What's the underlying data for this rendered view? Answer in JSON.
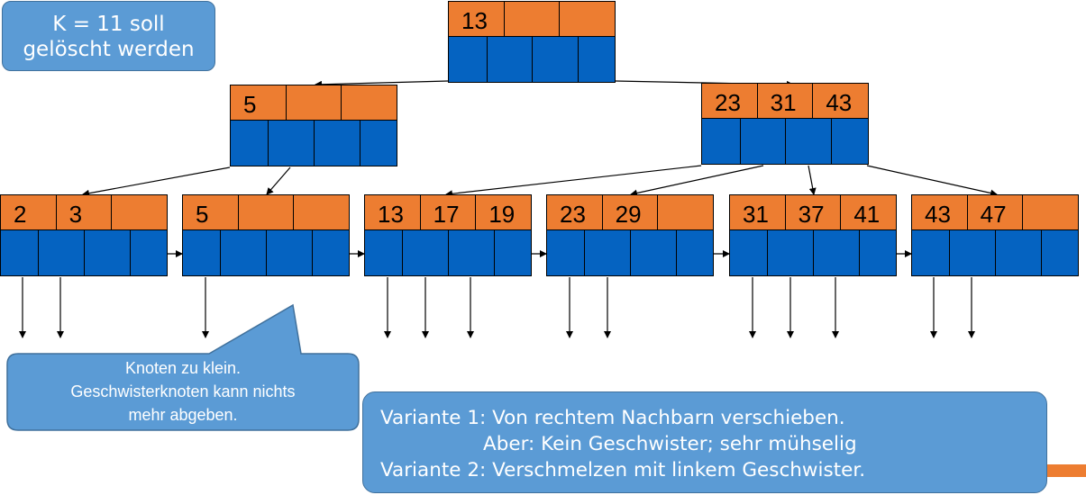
{
  "title_box": {
    "line1": "K = 11 soll",
    "line2": "gelöscht werden"
  },
  "tree": {
    "root": {
      "keys": [
        "13",
        "",
        ""
      ]
    },
    "level1": [
      {
        "keys": [
          "5",
          "",
          ""
        ]
      },
      {
        "keys": [
          "23",
          "31",
          "43"
        ]
      }
    ],
    "leaves": [
      {
        "keys": [
          "2",
          "3",
          ""
        ]
      },
      {
        "keys": [
          "5",
          "",
          ""
        ]
      },
      {
        "keys": [
          "13",
          "17",
          "19"
        ]
      },
      {
        "keys": [
          "23",
          "29",
          ""
        ]
      },
      {
        "keys": [
          "31",
          "37",
          "41"
        ]
      },
      {
        "keys": [
          "43",
          "47",
          ""
        ]
      }
    ]
  },
  "note_callout": {
    "line1": "Knoten zu klein.",
    "line2": "Geschwisterknoten kann nichts",
    "line3": "mehr abgeben."
  },
  "variants_box": {
    "line1": "Variante 1: Von rechtem Nachbarn verschieben.",
    "line2": "Aber: Kein Geschwister; sehr mühselig",
    "line3": "Variante 2: Verschmelzen mit linkem Geschwister."
  },
  "colors": {
    "key_fill": "#ED7D31",
    "pointer_fill": "#0563C1",
    "callout_fill": "#5B9BD5",
    "arrow": "#ED7D31"
  }
}
